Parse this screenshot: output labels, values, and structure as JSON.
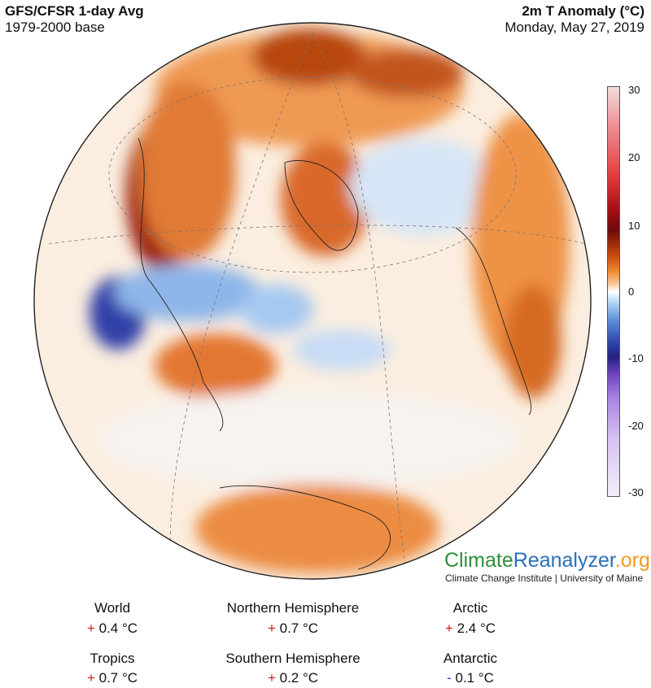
{
  "header": {
    "left_title": "GFS/CFSR 1-day Avg",
    "left_subtitle": "1979-2000 base",
    "right_title": "2m T Anomaly (°C)",
    "right_subtitle": "Monday, May 27, 2019"
  },
  "colorbar": {
    "ticks": [
      "30",
      "20",
      "10",
      "0",
      "-10",
      "-20",
      "-30"
    ],
    "colors": {
      "warm_extreme": "#6d0b0b",
      "warm": "#ed8a2e",
      "neutral": "#ffffff",
      "cool": "#5f8fd8",
      "cold": "#23217f",
      "cold_extreme": "#a983e0"
    }
  },
  "logo": {
    "part1": "Climate",
    "part2": "Reanalyzer",
    "part3": ".org",
    "subtitle": "Climate Change Institute | University of Maine"
  },
  "stats": [
    {
      "label": "World",
      "sign": "+",
      "value": "0.4 °C"
    },
    {
      "label": "Northern Hemisphere",
      "sign": "+",
      "value": "0.7 °C"
    },
    {
      "label": "Arctic",
      "sign": "+",
      "value": "2.4 °C"
    },
    {
      "label": "Tropics",
      "sign": "+",
      "value": "0.7 °C"
    },
    {
      "label": "Southern Hemisphere",
      "sign": "+",
      "value": "0.2 °C"
    },
    {
      "label": "Antarctic",
      "sign": "-",
      "value": "0.1 °C"
    }
  ]
}
